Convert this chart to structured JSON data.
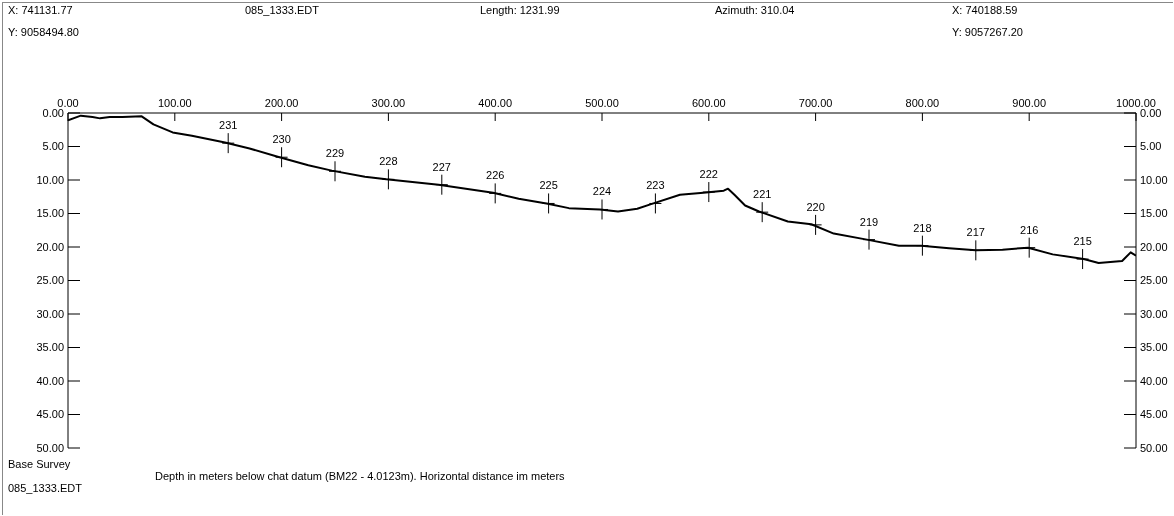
{
  "chart_data": {
    "type": "line",
    "title": "085_1333.EDT",
    "annotations": [
      "X: 741131.77",
      "Length: 1231.99",
      "Azimuth: 310.04",
      "X: 740188.59",
      "Y: 9058494.80",
      "Y: 9057267.20",
      "Base Survey",
      "085_1333.EDT",
      "Depth in meters below chat datum (BM22 - 4.0123m). Horizontal distance im meters",
      {
        "text": "231",
        "x": 150,
        "y": 4.5
      },
      {
        "text": "230",
        "x": 200,
        "y": 6.6
      },
      {
        "text": "229",
        "x": 250,
        "y": 8.7
      },
      {
        "text": "228",
        "x": 300,
        "y": 9.9
      },
      {
        "text": "227",
        "x": 350,
        "y": 10.7
      },
      {
        "text": "226",
        "x": 400,
        "y": 12
      },
      {
        "text": "225",
        "x": 450,
        "y": 13.5
      },
      {
        "text": "224",
        "x": 500,
        "y": 14.4
      },
      {
        "text": "223",
        "x": 550,
        "y": 13.5
      },
      {
        "text": "222",
        "x": 600,
        "y": 11.8
      },
      {
        "text": "221",
        "x": 650,
        "y": 14.8
      },
      {
        "text": "220",
        "x": 700,
        "y": 16.7
      },
      {
        "text": "219",
        "x": 750,
        "y": 18.9
      },
      {
        "text": "218",
        "x": 800,
        "y": 19.8
      },
      {
        "text": "217",
        "x": 850,
        "y": 20.5
      },
      {
        "text": "216",
        "x": 900,
        "y": 20.1
      },
      {
        "text": "215",
        "x": 950,
        "y": 21.8
      }
    ],
    "x": [
      0,
      12,
      23,
      30,
      39,
      51,
      69,
      80,
      98,
      116,
      147,
      170,
      198,
      225,
      247,
      278,
      298,
      347,
      398,
      422,
      448,
      469,
      498,
      515,
      533,
      546,
      573,
      595,
      614,
      618,
      624,
      634,
      647,
      674,
      696,
      717,
      748,
      778,
      799,
      825,
      850,
      875,
      899,
      922,
      951,
      965,
      987,
      995,
      1000
    ],
    "series": [
      {
        "color": "#000000",
        "values": [
          1.1,
          0.4,
          0.6,
          0.8,
          0.6,
          0.6,
          0.5,
          1.7,
          2.9,
          3.4,
          4.4,
          5.3,
          6.6,
          7.8,
          8.6,
          9.5,
          9.9,
          10.7,
          11.9,
          12.8,
          13.5,
          14.2,
          14.4,
          14.7,
          14.3,
          13.6,
          12.2,
          11.9,
          11.6,
          11.3,
          12.2,
          13.8,
          14.7,
          16.2,
          16.6,
          18,
          18.9,
          19.8,
          19.8,
          20.2,
          20.5,
          20.4,
          20.1,
          21.1,
          21.8,
          22.4,
          22.1,
          20.8,
          21.3
        ]
      }
    ],
    "xlim": [
      0,
      1000
    ],
    "xticks": [
      {
        "value": 0,
        "label": "0.00"
      },
      {
        "value": 100,
        "label": "100.00"
      },
      {
        "value": 200,
        "label": "200.00"
      },
      {
        "value": 300,
        "label": "300.00"
      },
      {
        "value": 400,
        "label": "400.00"
      },
      {
        "value": 500,
        "label": "500.00"
      },
      {
        "value": 600,
        "label": "600.00"
      },
      {
        "value": 700,
        "label": "700.00"
      },
      {
        "value": 800,
        "label": "800.00"
      },
      {
        "value": 900,
        "label": "900.00"
      },
      {
        "value": 1000,
        "label": "1000.00"
      }
    ],
    "ylim": [
      50,
      0
    ],
    "yticks": [
      {
        "value": 0,
        "label": "0.00"
      },
      {
        "value": 5,
        "label": "5.00"
      },
      {
        "value": 10,
        "label": "10.00"
      },
      {
        "value": 15,
        "label": "15.00"
      },
      {
        "value": 20,
        "label": "20.00"
      },
      {
        "value": 25,
        "label": "25.00"
      },
      {
        "value": 30,
        "label": "30.00"
      },
      {
        "value": 35,
        "label": "35.00"
      },
      {
        "value": 40,
        "label": "40.00"
      },
      {
        "value": 45,
        "label": "45.00"
      },
      {
        "value": 50,
        "label": "50.00"
      }
    ],
    "y2lim": [
      50,
      0
    ],
    "y2ticks": [
      {
        "value": 0,
        "label": "0.00"
      },
      {
        "value": 5,
        "label": "5.00"
      },
      {
        "value": 10,
        "label": "10.00"
      },
      {
        "value": 15,
        "label": "15.00"
      },
      {
        "value": 20,
        "label": "20.00"
      },
      {
        "value": 25,
        "label": "25.00"
      },
      {
        "value": 30,
        "label": "30.00"
      },
      {
        "value": 35,
        "label": "35.00"
      },
      {
        "value": 40,
        "label": "40.00"
      },
      {
        "value": 45,
        "label": "45.00"
      },
      {
        "value": 50,
        "label": "50.00"
      }
    ],
    "grid": false,
    "legend": false,
    "marker": "none",
    "line_style": "solid"
  }
}
